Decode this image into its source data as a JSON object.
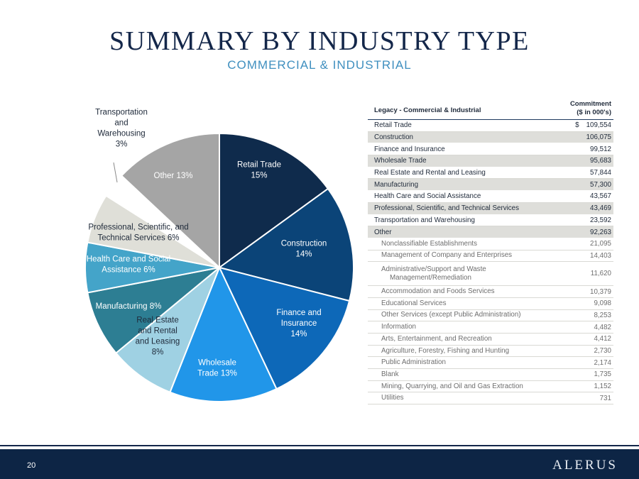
{
  "header": {
    "title": "SUMMARY BY INDUSTRY TYPE",
    "subtitle": "COMMERCIAL & INDUSTRIAL"
  },
  "chart_data": {
    "type": "pie",
    "title": "",
    "start_angle_deg": 0,
    "slices": [
      {
        "lines": [
          "Retail Trade",
          "15%"
        ],
        "value": 15,
        "color": "#0f2b4c",
        "label_color": "#ffffff"
      },
      {
        "lines": [
          "Construction",
          "14%"
        ],
        "value": 14,
        "color": "#0b4478",
        "label_color": "#ffffff"
      },
      {
        "lines": [
          "Finance and",
          "Insurance",
          "14%"
        ],
        "value": 14,
        "color": "#0d68b8",
        "label_color": "#ffffff"
      },
      {
        "lines": [
          "Wholesale",
          "Trade 13%"
        ],
        "value": 13,
        "color": "#2196e9",
        "label_color": "#ffffff"
      },
      {
        "lines": [
          "Real Estate",
          "and Rental",
          "and Leasing",
          "8%"
        ],
        "value": 8,
        "color": "#9fd1e3",
        "label_color": "#1f2a3a"
      },
      {
        "lines": [
          "Manufacturing 8%"
        ],
        "value": 8,
        "color": "#2d7e93",
        "label_color": "#ffffff"
      },
      {
        "lines": [
          "Health Care and Social",
          "Assistance 6%"
        ],
        "value": 6,
        "color": "#44a4c9",
        "label_color": "#ffffff"
      },
      {
        "lines": [
          "Professional, Scientific, and",
          "Technical Services 6%"
        ],
        "value": 6,
        "color": "#dfdfd8",
        "label_color": "#1f2a3a"
      },
      {
        "lines": [
          "Transportation",
          "and",
          "Warehousing",
          "3%"
        ],
        "value": 3,
        "color": "#ffffff",
        "label_color": "#1f2a3a"
      },
      {
        "lines": [
          "Other 13%"
        ],
        "value": 13,
        "color": "#a5a5a5",
        "label_color": "#ffffff"
      }
    ]
  },
  "table": {
    "header_label": "Legacy - Commercial & Industrial",
    "header_value_line1": "Commitment",
    "header_value_line2": "($ in 000's)",
    "currency_symbol": "$",
    "rows": [
      {
        "label": "Retail Trade",
        "value": "109,554"
      },
      {
        "label": "Construction",
        "value": "106,075"
      },
      {
        "label": "Finance and Insurance",
        "value": "99,512"
      },
      {
        "label": "Wholesale Trade",
        "value": "95,683"
      },
      {
        "label": "Real Estate and Rental and Leasing",
        "value": "57,844"
      },
      {
        "label": "Manufacturing",
        "value": "57,300"
      },
      {
        "label": "Health Care and Social Assistance",
        "value": "43,567"
      },
      {
        "label": "Professional, Scientific, and Technical Services",
        "value": "43,469"
      },
      {
        "label": "Transportation and Warehousing",
        "value": "23,592"
      },
      {
        "label": "Other",
        "value": "92,263"
      }
    ],
    "subrows": [
      {
        "label": "Nonclassifiable Establishments",
        "value": "21,095"
      },
      {
        "label": "Management of Company and Enterprises",
        "value": "14,403"
      },
      {
        "label": "Administrative/Support and Waste",
        "label2": "Management/Remediation",
        "value": "11,620"
      },
      {
        "label": "Accommodation and Foods Services",
        "value": "10,379"
      },
      {
        "label": "Educational Services",
        "value": "9,098"
      },
      {
        "label": "Other Services (except Public Administration)",
        "value": "8,253"
      },
      {
        "label": "Information",
        "value": "4,482"
      },
      {
        "label": "Arts, Entertainment, and Recreation",
        "value": "4,412"
      },
      {
        "label": "Agriculture, Forestry, Fishing and Hunting",
        "value": "2,730"
      },
      {
        "label": "Public Administration",
        "value": "2,174"
      },
      {
        "label": "Blank",
        "value": "1,735"
      },
      {
        "label": "Mining, Quarrying, and Oil and Gas Extraction",
        "value": "1,152"
      },
      {
        "label": "Utilities",
        "value": "731"
      }
    ]
  },
  "footer": {
    "page_number": "20",
    "logo_text": "ALERUS"
  }
}
